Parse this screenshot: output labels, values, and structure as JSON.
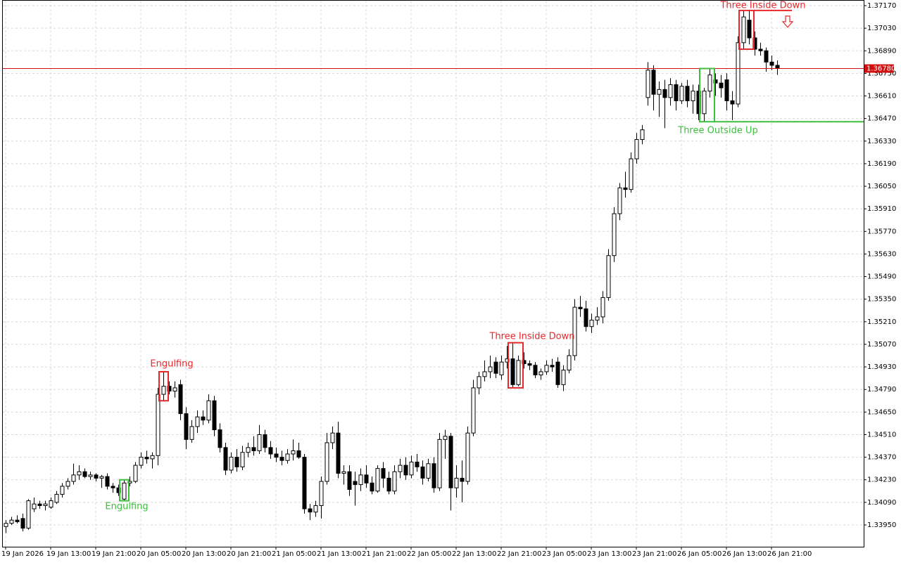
{
  "chart_data": {
    "type": "candlestick",
    "ylim": [
      1.339,
      1.372
    ],
    "yticks": [
      {
        "value": 1.3395,
        "label": "1.33950"
      },
      {
        "value": 1.3409,
        "label": "1.34090"
      },
      {
        "value": 1.3423,
        "label": "1.34230"
      },
      {
        "value": 1.3437,
        "label": "1.34370"
      },
      {
        "value": 1.3451,
        "label": "1.34510"
      },
      {
        "value": 1.3465,
        "label": "1.34650"
      },
      {
        "value": 1.3479,
        "label": "1.34790"
      },
      {
        "value": 1.3493,
        "label": "1.34930"
      },
      {
        "value": 1.3507,
        "label": "1.35070"
      },
      {
        "value": 1.3521,
        "label": "1.35210"
      },
      {
        "value": 1.3535,
        "label": "1.35350"
      },
      {
        "value": 1.3549,
        "label": "1.35490"
      },
      {
        "value": 1.3563,
        "label": "1.35630"
      },
      {
        "value": 1.3577,
        "label": "1.35770"
      },
      {
        "value": 1.3591,
        "label": "1.35910"
      },
      {
        "value": 1.3605,
        "label": "1.36050"
      },
      {
        "value": 1.3619,
        "label": "1.36190"
      },
      {
        "value": 1.3633,
        "label": "1.36330"
      },
      {
        "value": 1.3647,
        "label": "1.36470"
      },
      {
        "value": 1.3661,
        "label": "1.36610"
      },
      {
        "value": 1.3675,
        "label": "1.36750"
      },
      {
        "value": 1.3689,
        "label": "1.36890"
      },
      {
        "value": 1.3703,
        "label": "1.37030"
      },
      {
        "value": 1.3717,
        "label": "1.37170"
      }
    ],
    "grid": true,
    "current_price": {
      "value": 1.3678,
      "label": "1.36780",
      "color": "#d01010"
    },
    "colors": {
      "up": "#ffffff",
      "down": "#000000",
      "outline": "#000000"
    },
    "categories": [
      "19 Jan 2026",
      null,
      null,
      null,
      null,
      null,
      null,
      null,
      "19 Jan 13:00",
      null,
      null,
      null,
      null,
      null,
      null,
      null,
      "19 Jan 21:00",
      null,
      null,
      null,
      null,
      null,
      null,
      null,
      "20 Jan 05:00",
      null,
      null,
      null,
      null,
      null,
      null,
      null,
      "20 Jan 13:00",
      null,
      null,
      null,
      null,
      null,
      null,
      null,
      "20 Jan 21:00",
      null,
      null,
      null,
      null,
      null,
      null,
      null,
      "21 Jan 05:00",
      null,
      null,
      null,
      null,
      null,
      null,
      null,
      "21 Jan 13:00",
      null,
      null,
      null,
      null,
      null,
      null,
      null,
      "21 Jan 21:00",
      null,
      null,
      null,
      null,
      null,
      null,
      null,
      "22 Jan 05:00",
      null,
      null,
      null,
      null,
      null,
      null,
      null,
      "22 Jan 13:00",
      null,
      null,
      null,
      null,
      null,
      null,
      null,
      "22 Jan 21:00",
      null,
      null,
      null,
      null,
      null,
      null,
      null,
      "23 Jan 05:00",
      null,
      null,
      null,
      null,
      null,
      null,
      null,
      "23 Jan 13:00",
      null,
      null,
      null,
      null,
      null,
      null,
      null,
      "23 Jan 21:00",
      null,
      null,
      null,
      null,
      null,
      null,
      null,
      "26 Jan 05:00",
      null,
      null,
      null,
      null,
      null,
      null,
      null,
      "26 Jan 13:00",
      null,
      null,
      null,
      null,
      null,
      null,
      null,
      "26 Jan 21:00",
      null
    ],
    "ohlc": [
      [
        1.3394,
        1.3398,
        1.339,
        1.3396
      ],
      [
        1.3396,
        1.34,
        1.3395,
        1.3398
      ],
      [
        1.3398,
        1.3401,
        1.3396,
        1.3397
      ],
      [
        1.3399,
        1.3402,
        1.3391,
        1.3393
      ],
      [
        1.3393,
        1.3411,
        1.3392,
        1.341
      ],
      [
        1.3405,
        1.3412,
        1.3403,
        1.3408
      ],
      [
        1.3408,
        1.341,
        1.3405,
        1.3407
      ],
      [
        1.3407,
        1.341,
        1.3404,
        1.3408
      ],
      [
        1.3406,
        1.3412,
        1.3405,
        1.341
      ],
      [
        1.3409,
        1.3416,
        1.3408,
        1.3414
      ],
      [
        1.3414,
        1.3421,
        1.3412,
        1.3419
      ],
      [
        1.3419,
        1.3424,
        1.3417,
        1.3422
      ],
      [
        1.3422,
        1.3433,
        1.342,
        1.3426
      ],
      [
        1.3426,
        1.3432,
        1.3423,
        1.3428
      ],
      [
        1.3428,
        1.343,
        1.3424,
        1.3425
      ],
      [
        1.3425,
        1.3428,
        1.3423,
        1.3426
      ],
      [
        1.3426,
        1.3427,
        1.3422,
        1.3424
      ],
      [
        1.3424,
        1.3426,
        1.3418,
        1.3425
      ],
      [
        1.3425,
        1.3427,
        1.3417,
        1.3419
      ],
      [
        1.3419,
        1.3421,
        1.3415,
        1.3418
      ],
      [
        1.3418,
        1.342,
        1.3413,
        1.3415
      ],
      [
        1.3411,
        1.3423,
        1.341,
        1.3421
      ],
      [
        1.3421,
        1.3425,
        1.3419,
        1.3422
      ],
      [
        1.3422,
        1.3434,
        1.3421,
        1.3432
      ],
      [
        1.3432,
        1.344,
        1.343,
        1.3437
      ],
      [
        1.3437,
        1.3441,
        1.3433,
        1.3436
      ],
      [
        1.3436,
        1.344,
        1.343,
        1.3438
      ],
      [
        1.3438,
        1.348,
        1.3432,
        1.3476
      ],
      [
        1.3476,
        1.349,
        1.3472,
        1.3481
      ],
      [
        1.3481,
        1.3484,
        1.3476,
        1.3478
      ],
      [
        1.3478,
        1.3484,
        1.3474,
        1.348
      ],
      [
        1.3482,
        1.3485,
        1.346,
        1.3464
      ],
      [
        1.3464,
        1.3468,
        1.3442,
        1.3448
      ],
      [
        1.3448,
        1.346,
        1.3446,
        1.3456
      ],
      [
        1.3456,
        1.3466,
        1.3452,
        1.3462
      ],
      [
        1.3462,
        1.3466,
        1.3457,
        1.346
      ],
      [
        1.346,
        1.3476,
        1.3458,
        1.3472
      ],
      [
        1.3472,
        1.3475,
        1.345,
        1.3454
      ],
      [
        1.3454,
        1.3458,
        1.344,
        1.3443
      ],
      [
        1.3443,
        1.3446,
        1.3426,
        1.3429
      ],
      [
        1.3429,
        1.344,
        1.3427,
        1.3437
      ],
      [
        1.3437,
        1.3442,
        1.3428,
        1.3431
      ],
      [
        1.3431,
        1.3444,
        1.3429,
        1.344
      ],
      [
        1.344,
        1.3446,
        1.3437,
        1.3443
      ],
      [
        1.3443,
        1.345,
        1.3438,
        1.3441
      ],
      [
        1.3441,
        1.3457,
        1.3439,
        1.3451
      ],
      [
        1.3451,
        1.3454,
        1.344,
        1.3443
      ],
      [
        1.3443,
        1.3447,
        1.3436,
        1.3439
      ],
      [
        1.3439,
        1.3443,
        1.3434,
        1.3437
      ],
      [
        1.3437,
        1.3441,
        1.3432,
        1.3435
      ],
      [
        1.3435,
        1.3442,
        1.3433,
        1.3439
      ],
      [
        1.3439,
        1.3448,
        1.3435,
        1.3441
      ],
      [
        1.3441,
        1.3446,
        1.3436,
        1.3437
      ],
      [
        1.3437,
        1.3439,
        1.3402,
        1.3405
      ],
      [
        1.3405,
        1.3408,
        1.3398,
        1.3403
      ],
      [
        1.3403,
        1.341,
        1.34,
        1.3407
      ],
      [
        1.3407,
        1.3425,
        1.3399,
        1.3422
      ],
      [
        1.3422,
        1.3452,
        1.342,
        1.3446
      ],
      [
        1.3446,
        1.3456,
        1.3442,
        1.3452
      ],
      [
        1.3452,
        1.3459,
        1.3424,
        1.3427
      ],
      [
        1.3427,
        1.3432,
        1.342,
        1.3428
      ],
      [
        1.3428,
        1.3432,
        1.3413,
        1.3417
      ],
      [
        1.3422,
        1.3428,
        1.3407,
        1.342
      ],
      [
        1.342,
        1.343,
        1.3416,
        1.3426
      ],
      [
        1.3426,
        1.3432,
        1.3418,
        1.3421
      ],
      [
        1.3421,
        1.3425,
        1.3414,
        1.3416
      ],
      [
        1.3416,
        1.3432,
        1.3415,
        1.343
      ],
      [
        1.343,
        1.3434,
        1.3418,
        1.3424
      ],
      [
        1.3424,
        1.3428,
        1.3414,
        1.3416
      ],
      [
        1.3416,
        1.3432,
        1.3414,
        1.3428
      ],
      [
        1.3428,
        1.3436,
        1.3424,
        1.3432
      ],
      [
        1.3432,
        1.3437,
        1.3423,
        1.3426
      ],
      [
        1.3426,
        1.3438,
        1.3424,
        1.3434
      ],
      [
        1.3434,
        1.3439,
        1.3428,
        1.3431
      ],
      [
        1.3431,
        1.3435,
        1.342,
        1.3424
      ],
      [
        1.3424,
        1.3436,
        1.3422,
        1.3433
      ],
      [
        1.3433,
        1.3437,
        1.3415,
        1.3418
      ],
      [
        1.3418,
        1.3452,
        1.3416,
        1.3448
      ],
      [
        1.3448,
        1.3454,
        1.3436,
        1.345
      ],
      [
        1.345,
        1.3452,
        1.3404,
        1.3418
      ],
      [
        1.3418,
        1.3432,
        1.3412,
        1.3424
      ],
      [
        1.3424,
        1.3435,
        1.3409,
        1.3422
      ],
      [
        1.3422,
        1.3456,
        1.342,
        1.3452
      ],
      [
        1.3452,
        1.3485,
        1.345,
        1.348
      ],
      [
        1.348,
        1.349,
        1.3476,
        1.3487
      ],
      [
        1.3487,
        1.3497,
        1.3484,
        1.349
      ],
      [
        1.349,
        1.35,
        1.3486,
        1.3493
      ],
      [
        1.3496,
        1.3499,
        1.3486,
        1.3489
      ],
      [
        1.3488,
        1.35,
        1.3485,
        1.3496
      ],
      [
        1.3496,
        1.3506,
        1.3492,
        1.3498
      ],
      [
        1.3498,
        1.3508,
        1.348,
        1.3482
      ],
      [
        1.3482,
        1.35,
        1.3481,
        1.3497
      ],
      [
        1.3497,
        1.3502,
        1.3492,
        1.3495
      ],
      [
        1.3495,
        1.3497,
        1.3491,
        1.3494
      ],
      [
        1.3494,
        1.3496,
        1.3486,
        1.3488
      ],
      [
        1.3488,
        1.3492,
        1.3485,
        1.349
      ],
      [
        1.349,
        1.3497,
        1.3488,
        1.3494
      ],
      [
        1.3494,
        1.3498,
        1.349,
        1.3493
      ],
      [
        1.3496,
        1.3499,
        1.348,
        1.3482
      ],
      [
        1.3482,
        1.3494,
        1.3478,
        1.3491
      ],
      [
        1.3491,
        1.3504,
        1.3489,
        1.35
      ],
      [
        1.35,
        1.3535,
        1.3497,
        1.353
      ],
      [
        1.353,
        1.3537,
        1.3524,
        1.3529
      ],
      [
        1.3529,
        1.3534,
        1.3515,
        1.3518
      ],
      [
        1.3518,
        1.3526,
        1.3514,
        1.3522
      ],
      [
        1.3522,
        1.353,
        1.3519,
        1.3524
      ],
      [
        1.3524,
        1.354,
        1.352,
        1.3536
      ],
      [
        1.3536,
        1.3566,
        1.3534,
        1.3562
      ],
      [
        1.3562,
        1.3592,
        1.3558,
        1.3588
      ],
      [
        1.3588,
        1.3607,
        1.3584,
        1.3604
      ],
      [
        1.3604,
        1.3614,
        1.3598,
        1.3603
      ],
      [
        1.3603,
        1.3626,
        1.3601,
        1.3622
      ],
      [
        1.3622,
        1.3638,
        1.3619,
        1.3634
      ],
      [
        1.3634,
        1.3643,
        1.3631,
        1.364
      ],
      [
        1.366,
        1.3682,
        1.3655,
        1.3677
      ],
      [
        1.3677,
        1.368,
        1.3652,
        1.3662
      ],
      [
        1.3662,
        1.367,
        1.3648,
        1.3665
      ],
      [
        1.3665,
        1.3671,
        1.3641,
        1.366
      ],
      [
        1.366,
        1.3672,
        1.3655,
        1.3668
      ],
      [
        1.3668,
        1.3671,
        1.3652,
        1.3658
      ],
      [
        1.3658,
        1.3669,
        1.3656,
        1.3667
      ],
      [
        1.3667,
        1.3671,
        1.3654,
        1.3658
      ],
      [
        1.3658,
        1.3668,
        1.365,
        1.3664
      ],
      [
        1.3664,
        1.3668,
        1.3646,
        1.365
      ],
      [
        1.365,
        1.3666,
        1.3645,
        1.3664
      ],
      [
        1.3664,
        1.3678,
        1.366,
        1.3674
      ],
      [
        1.3671,
        1.3675,
        1.3661,
        1.3669
      ],
      [
        1.3669,
        1.3674,
        1.366,
        1.3666
      ],
      [
        1.3671,
        1.3675,
        1.3652,
        1.3658
      ],
      [
        1.3658,
        1.3664,
        1.3646,
        1.3656
      ],
      [
        1.3656,
        1.3698,
        1.3654,
        1.3694
      ],
      [
        1.3694,
        1.3714,
        1.369,
        1.371
      ],
      [
        1.3708,
        1.3714,
        1.3693,
        1.3697
      ],
      [
        1.3697,
        1.3701,
        1.3686,
        1.369
      ],
      [
        1.369,
        1.3694,
        1.3686,
        1.3689
      ],
      [
        1.3689,
        1.3691,
        1.3676,
        1.3682
      ],
      [
        1.3682,
        1.3686,
        1.3677,
        1.368
      ],
      [
        1.368,
        1.3683,
        1.3674,
        1.3678
      ]
    ],
    "annotations": [
      {
        "text": "Engulfing",
        "color": "#3cbf3c"
      },
      {
        "text": "Engulfing",
        "color": "#e8282a"
      },
      {
        "text": "Three Inside Down",
        "color": "#e8282a"
      },
      {
        "text": "Three Outside Up",
        "color": "#3cbf3c"
      },
      {
        "text": "Three Inside Down",
        "color": "#e8282a"
      }
    ]
  }
}
